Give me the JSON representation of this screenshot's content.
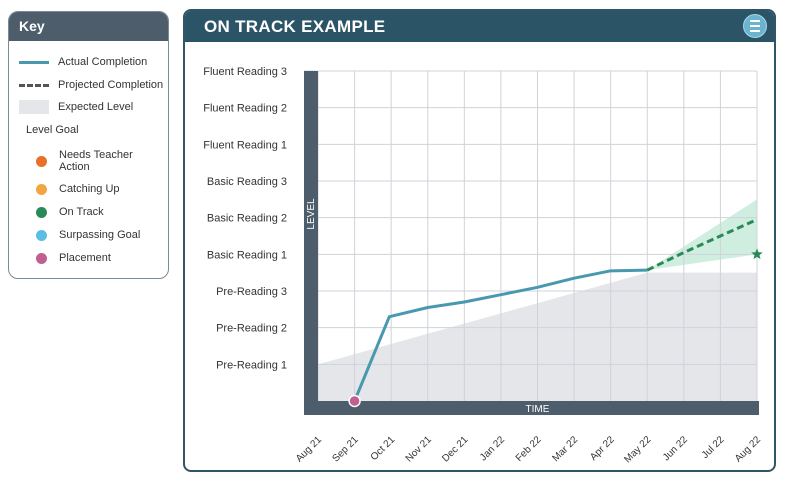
{
  "key": {
    "title": "Key",
    "actual": "Actual Completion",
    "projected": "Projected Completion",
    "expected": "Expected Level",
    "level_goal": "Level Goal",
    "items": [
      {
        "label": "Needs Teacher Action",
        "color": "#e8702a"
      },
      {
        "label": "Catching Up",
        "color": "#f2a541"
      },
      {
        "label": "On Track",
        "color": "#2a8a57"
      },
      {
        "label": "Surpassing Goal",
        "color": "#5bbde4"
      },
      {
        "label": "Placement",
        "color": "#c06090"
      }
    ]
  },
  "panel": {
    "title": "ON TRACK EXAMPLE",
    "settings_icon": "sliders-icon"
  },
  "chart_data": {
    "type": "line",
    "title": "ON TRACK EXAMPLE",
    "xlabel": "TIME",
    "ylabel": "LEVEL",
    "categories": [
      "Aug 21",
      "Sep 21",
      "Oct 21",
      "Nov 21",
      "Dec 21",
      "Jan 22",
      "Feb 22",
      "Mar 22",
      "Apr 22",
      "May 22",
      "Jun 22",
      "Jul 22",
      "Aug 22"
    ],
    "y_levels": [
      "Pre-Reading 1",
      "Pre-Reading 2",
      "Pre-Reading 3",
      "Basic Reading 1",
      "Basic Reading 2",
      "Basic Reading 3",
      "Fluent Reading 1",
      "Fluent Reading 2",
      "Fluent Reading 3"
    ],
    "ylim": [
      0,
      9
    ],
    "grid": true,
    "colors": {
      "actual": "#4a98b0",
      "projected": "#2a8a57",
      "expected": "#e4e6ea",
      "band": "#bfe8d4",
      "axis_bar": "#4d5d6b"
    },
    "series": [
      {
        "name": "Actual Completion",
        "x": [
          1,
          1.95,
          3,
          4,
          5,
          6,
          7,
          8,
          9
        ],
        "y": [
          0,
          2.3,
          2.55,
          2.7,
          2.9,
          3.1,
          3.35,
          3.55,
          3.57
        ]
      },
      {
        "name": "Projected Completion",
        "x": [
          9,
          10,
          11,
          12
        ],
        "y": [
          3.57,
          4.05,
          4.5,
          4.95
        ]
      },
      {
        "name": "Expected Level",
        "x": [
          0,
          9,
          12
        ],
        "y": [
          1,
          3.5,
          3.5
        ]
      }
    ],
    "projection_band": {
      "x": [
        9,
        12
      ],
      "upper": [
        3.57,
        5.5
      ],
      "lower": [
        3.57,
        4.0
      ]
    },
    "placement": {
      "x": 1,
      "y": 0,
      "label": "Placement"
    },
    "level_goal": {
      "x": 12,
      "y": 4.0,
      "label": "On Track"
    }
  }
}
